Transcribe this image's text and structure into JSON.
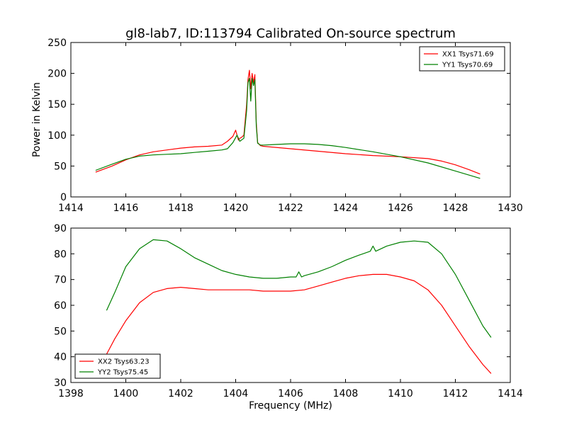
{
  "figure": {
    "title": "gl8-lab7, ID:113794 Calibrated On-source spectrum",
    "ylabel": "Power in Kelvin",
    "xlabel": "Frequency (MHz)"
  },
  "colors": {
    "red": "#ff0000",
    "green": "#008000"
  },
  "chart_data": [
    {
      "type": "line",
      "ylabel": "Power in Kelvin",
      "xlim": [
        1414,
        1430
      ],
      "ylim": [
        0,
        250
      ],
      "xticks": [
        "1414",
        "1416",
        "1418",
        "1420",
        "1422",
        "1424",
        "1426",
        "1428",
        "1430"
      ],
      "yticks": [
        "0",
        "50",
        "100",
        "150",
        "200",
        "250"
      ],
      "grid": false,
      "legend_position": "top-right",
      "series": [
        {
          "name": "XX1 Tsys71.69",
          "color": "#ff0000",
          "x": [
            1414.9,
            1415.5,
            1416.0,
            1416.5,
            1417.0,
            1417.5,
            1418.0,
            1418.5,
            1419.0,
            1419.5,
            1419.7,
            1419.9,
            1420.0,
            1420.1,
            1420.15,
            1420.2,
            1420.3,
            1420.4,
            1420.45,
            1420.5,
            1420.55,
            1420.6,
            1420.65,
            1420.7,
            1420.75,
            1420.8,
            1420.9,
            1421.0,
            1422.0,
            1423.0,
            1424.0,
            1425.0,
            1426.0,
            1427.0,
            1427.5,
            1428.0,
            1428.5,
            1428.9
          ],
          "y": [
            40,
            50,
            60,
            68,
            73,
            76,
            79,
            81,
            82,
            84,
            90,
            98,
            108,
            92,
            95,
            96,
            100,
            150,
            190,
            205,
            175,
            200,
            185,
            198,
            120,
            88,
            83,
            82,
            78,
            74,
            70,
            67,
            65,
            62,
            58,
            52,
            44,
            37
          ]
        },
        {
          "name": "YY1 Tsys70.69",
          "color": "#008000",
          "x": [
            1414.9,
            1415.5,
            1416.0,
            1416.5,
            1417.0,
            1417.5,
            1418.0,
            1418.5,
            1419.0,
            1419.5,
            1419.7,
            1419.9,
            1420.05,
            1420.15,
            1420.3,
            1420.4,
            1420.45,
            1420.5,
            1420.55,
            1420.6,
            1420.65,
            1420.7,
            1420.75,
            1420.8,
            1420.9,
            1421.0,
            1421.5,
            1422.0,
            1422.5,
            1423.0,
            1423.5,
            1424.0,
            1425.0,
            1426.0,
            1427.0,
            1428.0,
            1428.9
          ],
          "y": [
            43,
            53,
            61,
            66,
            68,
            69,
            70,
            72,
            74,
            76,
            78,
            88,
            100,
            90,
            95,
            140,
            185,
            192,
            155,
            192,
            180,
            190,
            115,
            87,
            84,
            84,
            85,
            86,
            86,
            85,
            83,
            80,
            73,
            65,
            55,
            42,
            30
          ]
        }
      ]
    },
    {
      "type": "line",
      "xlabel": "Frequency (MHz)",
      "xlim": [
        1398,
        1414
      ],
      "ylim": [
        30,
        90
      ],
      "xticks": [
        "1398",
        "1400",
        "1402",
        "1404",
        "1406",
        "1408",
        "1410",
        "1412",
        "1414"
      ],
      "yticks": [
        "30",
        "40",
        "50",
        "60",
        "70",
        "80",
        "90"
      ],
      "grid": false,
      "legend_position": "bottom-left",
      "series": [
        {
          "name": "XX2 Tsys63.23",
          "color": "#ff0000",
          "x": [
            1399.3,
            1399.6,
            1400.0,
            1400.5,
            1401.0,
            1401.5,
            1402.0,
            1402.5,
            1403.0,
            1403.5,
            1404.0,
            1404.5,
            1405.0,
            1405.5,
            1406.0,
            1406.5,
            1407.0,
            1407.5,
            1408.0,
            1408.5,
            1409.0,
            1409.5,
            1410.0,
            1410.5,
            1411.0,
            1411.5,
            1412.0,
            1412.5,
            1413.0,
            1413.3
          ],
          "y": [
            41,
            47,
            54,
            61,
            65,
            66.5,
            67,
            66.5,
            66,
            66,
            66,
            66,
            65.5,
            65.5,
            65.5,
            66,
            67.5,
            69,
            70.5,
            71.5,
            72,
            72,
            71,
            69.5,
            66,
            60,
            52,
            44,
            37,
            33.5
          ]
        },
        {
          "name": "YY2 Tsys75.45",
          "color": "#008000",
          "x": [
            1399.3,
            1399.6,
            1400.0,
            1400.5,
            1401.0,
            1401.5,
            1402.0,
            1402.5,
            1403.0,
            1403.5,
            1404.0,
            1404.5,
            1405.0,
            1405.5,
            1406.0,
            1406.2,
            1406.3,
            1406.4,
            1406.5,
            1407.0,
            1407.5,
            1408.0,
            1408.5,
            1408.9,
            1409.0,
            1409.1,
            1409.5,
            1410.0,
            1410.5,
            1411.0,
            1411.5,
            1412.0,
            1412.5,
            1413.0,
            1413.3
          ],
          "y": [
            58,
            65,
            75,
            82,
            85.5,
            85,
            82,
            78.5,
            76,
            73.5,
            72,
            71,
            70.5,
            70.5,
            71,
            71,
            73,
            71,
            71.5,
            73,
            75,
            77.5,
            79.5,
            81,
            83,
            81,
            83,
            84.5,
            85,
            84.5,
            80,
            72,
            62,
            52,
            47.5
          ]
        }
      ]
    }
  ]
}
